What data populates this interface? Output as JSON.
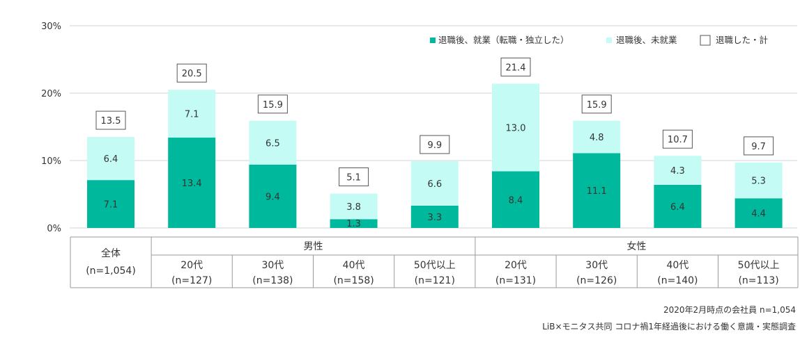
{
  "chart_data": {
    "type": "bar",
    "stacked": true,
    "ylim": [
      0,
      30
    ],
    "yticks": [
      0,
      10,
      20,
      30
    ],
    "ytick_labels": [
      "0%",
      "10%",
      "20%",
      "30%"
    ],
    "grid": true,
    "colors": {
      "employed": "#00b89c",
      "unemployed": "#c5fbf5",
      "total_border": "#555555",
      "grid": "#cfd4da"
    },
    "legend": {
      "placement": "top-right",
      "items": [
        "退職後、就業（転職・独立した）",
        "退職後、未就業",
        "退職した・計"
      ]
    },
    "series": [
      {
        "name": "退職後、就業（転職・独立した）",
        "values": [
          7.1,
          13.4,
          9.4,
          1.3,
          3.3,
          8.4,
          11.1,
          6.4,
          4.4
        ]
      },
      {
        "name": "退職後、未就業",
        "values": [
          6.4,
          7.1,
          6.5,
          3.8,
          6.6,
          13.0,
          4.8,
          4.3,
          5.3
        ]
      }
    ],
    "totals": [
      13.5,
      20.5,
      15.9,
      5.1,
      9.9,
      21.4,
      15.9,
      10.7,
      9.7
    ],
    "table": {
      "overall": {
        "label": "全体",
        "n": "(n=1,054)"
      },
      "groups": [
        {
          "name": "男性",
          "cols": [
            1,
            2,
            3,
            4
          ]
        },
        {
          "name": "女性",
          "cols": [
            5,
            6,
            7,
            8
          ]
        }
      ],
      "columns": [
        {
          "age": "20代",
          "n": "(n=127)"
        },
        {
          "age": "30代",
          "n": "(n=138)"
        },
        {
          "age": "40代",
          "n": "(n=158)"
        },
        {
          "age": "50代以上",
          "n": "(n=121)"
        },
        {
          "age": "20代",
          "n": "(n=131)"
        },
        {
          "age": "30代",
          "n": "(n=126)"
        },
        {
          "age": "40代",
          "n": "(n=140)"
        },
        {
          "age": "50代以上",
          "n": "(n=113)"
        }
      ]
    }
  },
  "source": {
    "line1": "2020年2月時点の会社員  n=1,054",
    "line2": "LiB×モニタス共同 コロナ禍1年経過後における働く意識・実態調査"
  }
}
